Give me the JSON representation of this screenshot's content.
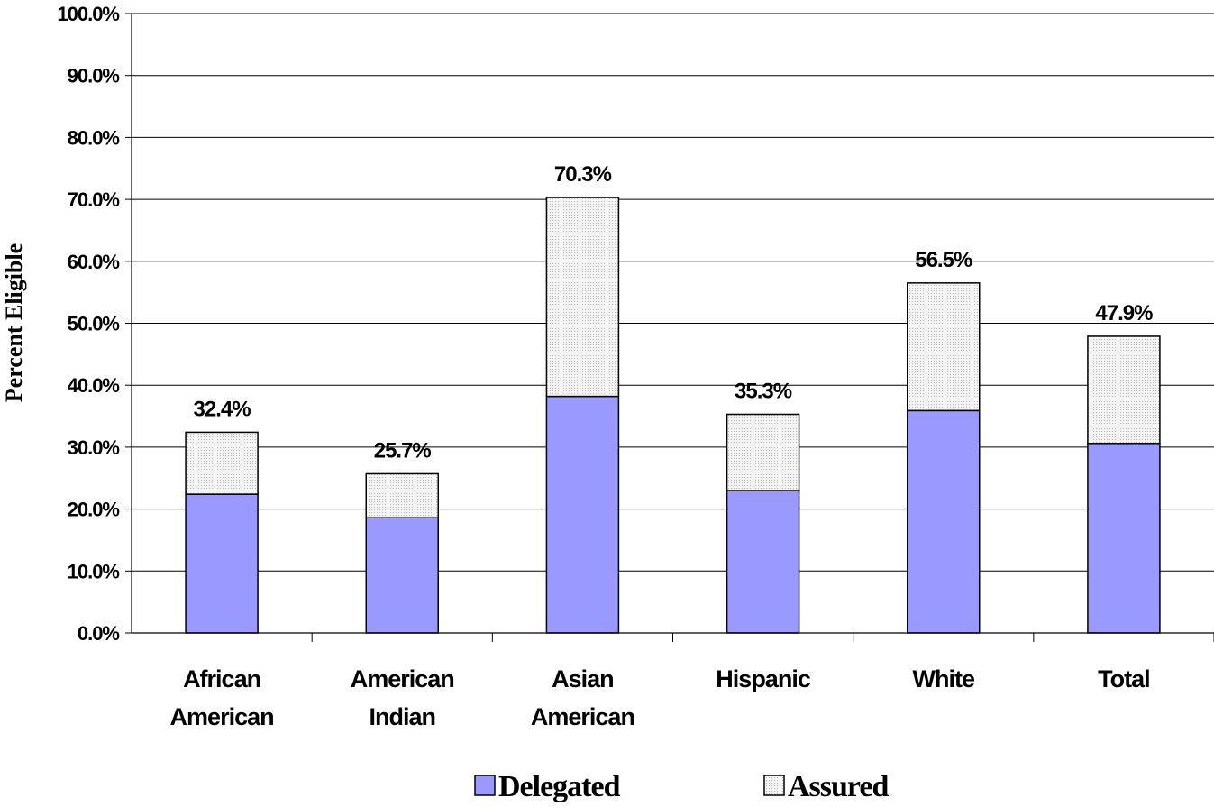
{
  "chart_data": {
    "type": "bar",
    "stacked": true,
    "title": "",
    "xlabel": "",
    "ylabel": "Percent Eligible",
    "ylim": [
      0,
      100
    ],
    "ytick_step": 10,
    "y_tick_labels": [
      "0.0%",
      "10.0%",
      "20.0%",
      "30.0%",
      "40.0%",
      "50.0%",
      "60.0%",
      "70.0%",
      "80.0%",
      "90.0%",
      "100.0%"
    ],
    "grid": true,
    "legend_position": "bottom",
    "categories": [
      [
        "African",
        "American"
      ],
      [
        "American",
        "Indian"
      ],
      [
        "Asian",
        "American"
      ],
      [
        "Hispanic"
      ],
      [
        "White"
      ],
      [
        "Total"
      ]
    ],
    "series": [
      {
        "name": "Delegated",
        "color": "#9999ff",
        "values": [
          22.4,
          18.6,
          38.2,
          23.0,
          35.9,
          30.6
        ]
      },
      {
        "name": "Assured",
        "color": "#f0f0f0",
        "values": [
          10.0,
          7.1,
          32.1,
          12.3,
          20.6,
          17.3
        ]
      }
    ],
    "totals": [
      32.4,
      25.7,
      70.3,
      35.3,
      56.5,
      47.9
    ],
    "total_labels": [
      "32.4%",
      "25.7%",
      "70.3%",
      "35.3%",
      "56.5%",
      "47.9%"
    ]
  }
}
